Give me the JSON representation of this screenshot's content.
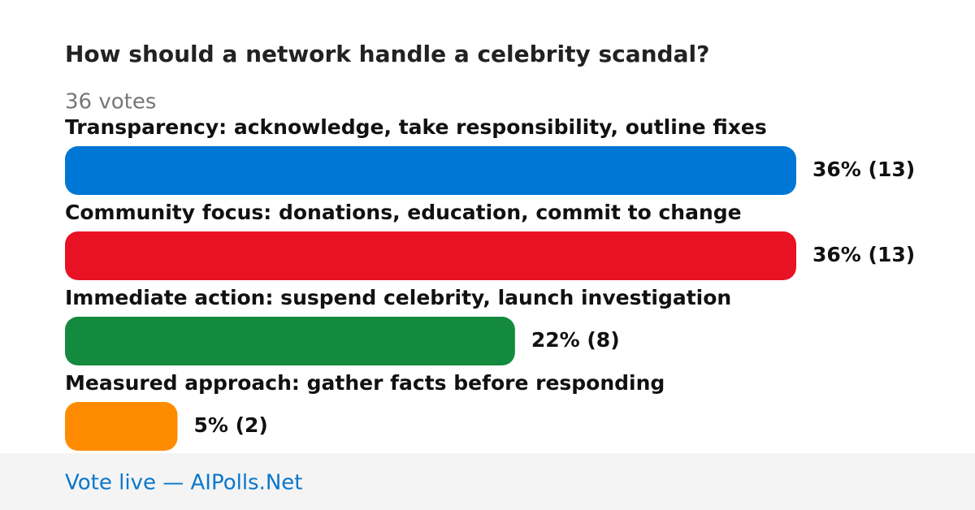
{
  "chart_data": {
    "type": "bar",
    "orientation": "horizontal",
    "title": "How should a network handle a celebrity scandal?",
    "subtitle": "36 votes",
    "categories": [
      "Transparency: acknowledge, take responsibility, outline fixes",
      "Community focus: donations, education, commit to change",
      "Immediate action: suspend celebrity, launch investigation",
      "Measured approach: gather facts before responding"
    ],
    "values": [
      13,
      13,
      8,
      2
    ],
    "value_labels": [
      "36% (13)",
      "36% (13)",
      "22% (8)",
      "5% (2)"
    ],
    "colors": [
      "#0077d4",
      "#e81224",
      "#138a3e",
      "#ff8c00"
    ],
    "footer": "Vote live — AIPolls.Net"
  }
}
